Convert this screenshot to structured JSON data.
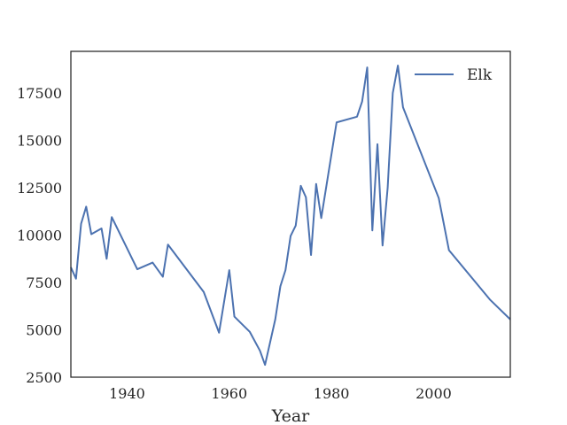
{
  "chart_data": {
    "type": "line",
    "title": "",
    "xlabel": "Year",
    "ylabel": "",
    "xlim": [
      1929,
      2015
    ],
    "ylim": [
      2500,
      19700
    ],
    "x_ticks": [
      1940,
      1960,
      1980,
      2000
    ],
    "y_ticks": [
      2500,
      5000,
      7500,
      10000,
      12500,
      15000,
      17500
    ],
    "grid": false,
    "legend_position": "top-right",
    "series": [
      {
        "name": "Elk",
        "color": "#4c72b0",
        "points": [
          [
            1929,
            8300
          ],
          [
            1930,
            7700
          ],
          [
            1931,
            10600
          ],
          [
            1932,
            11500
          ],
          [
            1933,
            10050
          ],
          [
            1935,
            10350
          ],
          [
            1936,
            8750
          ],
          [
            1937,
            10950
          ],
          [
            1942,
            8200
          ],
          [
            1945,
            8550
          ],
          [
            1947,
            7800
          ],
          [
            1948,
            9500
          ],
          [
            1955,
            7000
          ],
          [
            1958,
            4850
          ],
          [
            1960,
            8150
          ],
          [
            1961,
            5700
          ],
          [
            1964,
            4900
          ],
          [
            1966,
            3900
          ],
          [
            1967,
            3150
          ],
          [
            1969,
            5550
          ],
          [
            1970,
            7300
          ],
          [
            1971,
            8150
          ],
          [
            1972,
            9950
          ],
          [
            1973,
            10500
          ],
          [
            1974,
            12600
          ],
          [
            1975,
            12000
          ],
          [
            1976,
            8950
          ],
          [
            1977,
            12700
          ],
          [
            1978,
            10900
          ],
          [
            1981,
            15950
          ],
          [
            1985,
            16250
          ],
          [
            1986,
            17050
          ],
          [
            1987,
            18850
          ],
          [
            1988,
            10250
          ],
          [
            1989,
            14800
          ],
          [
            1990,
            9450
          ],
          [
            1991,
            12500
          ],
          [
            1992,
            17500
          ],
          [
            1993,
            18950
          ],
          [
            1994,
            16750
          ],
          [
            2001,
            11950
          ],
          [
            2003,
            9200
          ],
          [
            2011,
            6600
          ],
          [
            2015,
            5550
          ]
        ]
      }
    ]
  }
}
